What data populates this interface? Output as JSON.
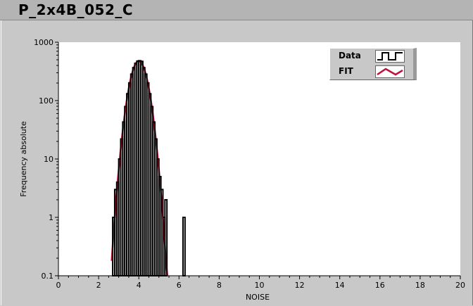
{
  "window": {
    "title": "P_2x4B_052_C"
  },
  "legend": {
    "items": [
      {
        "label": "Data",
        "color": "#000000",
        "style": "step"
      },
      {
        "label": "FIT",
        "color": "#c0103c",
        "style": "line"
      }
    ]
  },
  "chart_data": {
    "type": "line",
    "xlabel": "NOISE",
    "ylabel": "Frequency absolute",
    "xlim": [
      0,
      20
    ],
    "ylim": [
      0.1,
      1000
    ],
    "yscale": "log",
    "grid": false,
    "legend_position": "top-right",
    "xticks": [
      "0",
      "2",
      "4",
      "6",
      "8",
      "10",
      "12",
      "14",
      "16",
      "18",
      "20"
    ],
    "yticks": [
      "0.1",
      "1",
      "10",
      "100",
      "1000"
    ],
    "series": [
      {
        "name": "Data",
        "type": "step",
        "color": "#000000",
        "bin_width": 0.1,
        "x": [
          2.7,
          2.8,
          2.9,
          3.0,
          3.1,
          3.2,
          3.3,
          3.4,
          3.5,
          3.6,
          3.7,
          3.8,
          3.9,
          4.0,
          4.1,
          4.2,
          4.3,
          4.4,
          4.5,
          4.6,
          4.7,
          4.8,
          4.9,
          5.0,
          5.1,
          5.2,
          5.3,
          6.2
        ],
        "y": [
          1,
          3,
          4,
          10,
          22,
          43,
          79,
          131,
          201,
          284,
          367,
          436,
          475,
          482,
          470,
          367,
          284,
          201,
          131,
          79,
          43,
          22,
          10,
          5,
          3,
          1,
          2,
          1
        ]
      },
      {
        "name": "FIT",
        "type": "line",
        "color": "#c0103c",
        "x": [
          2.65,
          2.75,
          2.85,
          2.95,
          3.05,
          3.15,
          3.25,
          3.35,
          3.45,
          3.55,
          3.65,
          3.75,
          3.85,
          3.95,
          4.0,
          4.05,
          4.15,
          4.25,
          4.35,
          4.45,
          4.55,
          4.65,
          4.75,
          4.85,
          4.95,
          5.05,
          5.15,
          5.25,
          5.35,
          5.42
        ],
        "y": [
          0.18,
          0.6,
          1.7,
          4.3,
          10,
          22,
          43,
          79,
          131,
          201,
          284,
          367,
          436,
          475,
          480,
          475,
          436,
          367,
          284,
          201,
          131,
          79,
          43,
          22,
          10,
          4.3,
          1.7,
          0.6,
          0.18,
          0.1
        ]
      }
    ]
  }
}
